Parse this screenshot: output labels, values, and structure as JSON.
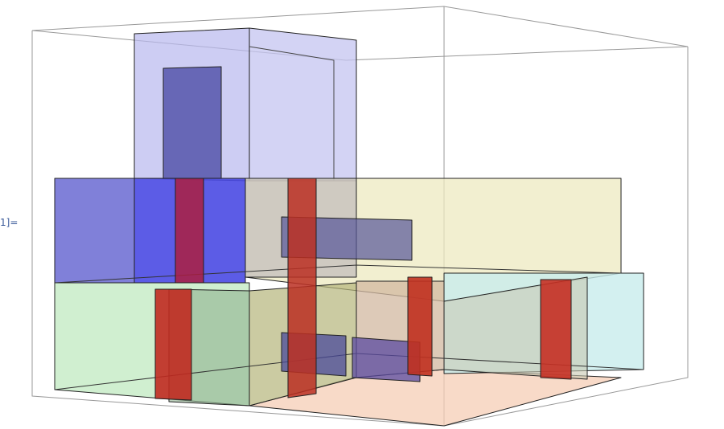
{
  "output_label": "1]="
}
